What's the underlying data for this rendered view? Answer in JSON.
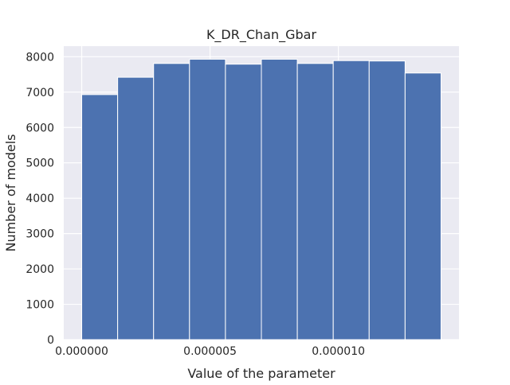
{
  "chart_data": {
    "type": "bar",
    "title": "K_DR_Chan_Gbar",
    "xlabel": "Value of the parameter",
    "ylabel": "Number of models",
    "xlim": [
      -7e-07,
      1.47e-05
    ],
    "ylim": [
      0,
      8300
    ],
    "x_ticks": [
      0,
      5e-06,
      1e-05
    ],
    "x_tick_labels": [
      "0.000000",
      "0.000005",
      "0.000010"
    ],
    "y_ticks": [
      0,
      1000,
      2000,
      3000,
      4000,
      5000,
      6000,
      7000,
      8000
    ],
    "y_tick_labels": [
      "0",
      "1000",
      "2000",
      "3000",
      "4000",
      "5000",
      "6000",
      "7000",
      "8000"
    ],
    "bin_edges": [
      0,
      1.4e-06,
      2.8e-06,
      4.2e-06,
      5.6e-06,
      7e-06,
      8.4e-06,
      9.8e-06,
      1.12e-05,
      1.26e-05,
      1.4e-05
    ],
    "values": [
      6930,
      7420,
      7810,
      7930,
      7790,
      7930,
      7810,
      7890,
      7880,
      7540
    ],
    "grid": true,
    "colors": {
      "bar": "#4c72b0",
      "bar_edge": "#ffffff",
      "plot_bg": "#eaeaf2",
      "grid": "#ffffff",
      "text": "#262626"
    }
  }
}
